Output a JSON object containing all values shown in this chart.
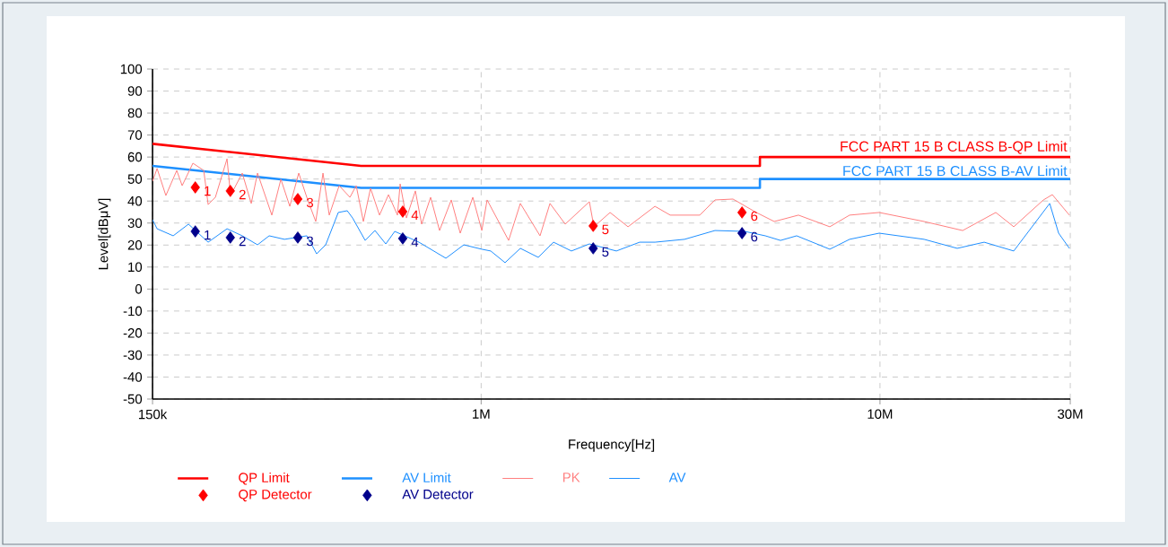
{
  "chart_data": {
    "type": "line",
    "xlabel": "Frequency[Hz]",
    "ylabel": "Level[dBμV]",
    "log": "x",
    "grid": true,
    "legend": "bottom",
    "xlim": [
      150000,
      30000000
    ],
    "ylim": [
      -50,
      100
    ],
    "xticks": [
      {
        "value": 150000,
        "label": "150k"
      },
      {
        "value": 1000000,
        "label": "1M"
      },
      {
        "value": 10000000,
        "label": "10M"
      },
      {
        "value": 30000000,
        "label": "30M"
      }
    ],
    "yticks": [
      -50,
      -40,
      -30,
      -20,
      -10,
      0,
      10,
      20,
      30,
      40,
      50,
      60,
      70,
      80,
      90,
      100
    ],
    "annotations": [
      {
        "text": "FCC PART 15 B CLASS B-QP Limit",
        "x": 30000000,
        "y": 60
      },
      {
        "text": "FCC PART 15 B CLASS B-AV Limit",
        "x": 30000000,
        "y": 50
      },
      {
        "text": "1",
        "x": 192000,
        "y": 46.2
      },
      {
        "text": "2",
        "x": 235000,
        "y": 44.6
      },
      {
        "text": "3",
        "x": 347000,
        "y": 40.9
      },
      {
        "text": "4",
        "x": 636000,
        "y": 35.2
      },
      {
        "text": "5",
        "x": 1910000,
        "y": 28.7
      },
      {
        "text": "6",
        "x": 4510000,
        "y": 34.8
      },
      {
        "text": "1",
        "x": 192000,
        "y": 26.2
      },
      {
        "text": "2",
        "x": 235000,
        "y": 23.4
      },
      {
        "text": "3",
        "x": 347000,
        "y": 23.4
      },
      {
        "text": "4",
        "x": 636000,
        "y": 23.0
      },
      {
        "text": "5",
        "x": 1910000,
        "y": 18.5
      },
      {
        "text": "6",
        "x": 4510000,
        "y": 25.4
      }
    ],
    "series": [
      {
        "name": "QP Limit",
        "color": "#ff0000",
        "marker": "none",
        "x": [
          150000,
          500000,
          5000000,
          5000000,
          30000000
        ],
        "values": [
          66,
          56,
          56,
          60,
          60
        ]
      },
      {
        "name": "AV Limit",
        "color": "#1e90ff",
        "marker": "none",
        "x": [
          150000,
          500000,
          5000000,
          5000000,
          30000000
        ],
        "values": [
          56,
          46,
          46,
          50,
          50
        ]
      },
      {
        "name": "PK",
        "color": "#ff8080",
        "marker": "none",
        "x": [
          150000,
          154000,
          162000,
          172500,
          178000,
          189400,
          201600,
          206800,
          215600,
          230600,
          235400,
          251800,
          265200,
          275000,
          298700,
          314700,
          331300,
          348900,
          367400,
          385000,
          401300,
          416100,
          440600,
          468800,
          486100,
          506700,
          528100,
          556200,
          585800,
          616900,
          626500,
          649700,
          684100,
          709500,
          747100,
          786800,
          841600,
          886300,
          953000,
          1004000,
          1035000,
          1172000,
          1254000,
          1405000,
          1488000,
          1625000,
          1868000,
          1918000,
          2105000,
          2335000,
          2728000,
          2979000,
          3534000,
          3858000,
          4280000,
          4897000,
          5431000,
          6247000,
          7486000,
          8391000,
          9954000,
          12900000,
          16120000,
          19520000,
          21650000,
          25690000,
          27050000,
          29850000
        ],
        "values": [
          49,
          54.8,
          42.5,
          53.9,
          47,
          57.2,
          53.9,
          38.4,
          41.7,
          59.2,
          42.5,
          52.7,
          38.9,
          52.7,
          33.6,
          49.9,
          37.6,
          52.7,
          40.5,
          30.7,
          52.7,
          33.6,
          47,
          41.7,
          47,
          30.7,
          45.8,
          33.6,
          42.9,
          33.6,
          47.8,
          32.3,
          44.6,
          29.5,
          41.7,
          26.6,
          40.5,
          25.4,
          41.7,
          26.6,
          40.5,
          22.1,
          38.9,
          24.2,
          38.9,
          29.5,
          39.7,
          28.3,
          34.8,
          28.3,
          37.6,
          33.6,
          33.6,
          40.5,
          40.9,
          34.8,
          30.7,
          33.6,
          28.3,
          33.6,
          34.8,
          30.7,
          26.6,
          34.8,
          28.3,
          40.5,
          42.9,
          33.6
        ]
      },
      {
        "name": "AV",
        "color": "#1e8fff",
        "marker": "none",
        "x": [
          150000,
          154000,
          169000,
          184600,
          206800,
          230600,
          251800,
          275000,
          294100,
          321300,
          365600,
          387000,
          407600,
          438300,
          461600,
          476100,
          512000,
          541900,
          576700,
          607300,
          698400,
          815800,
          904800,
          1004000,
          1057000,
          1148000,
          1254000,
          1391000,
          1519000,
          1684000,
          1868000,
          2183000,
          2497000,
          2728000,
          3236000,
          3858000,
          4578000,
          5157000,
          5631000,
          6183000,
          7486000,
          8391000,
          9954000,
          12900000,
          15620000,
          18250000,
          21650000,
          26640000,
          28050000,
          29850000
        ],
        "values": [
          31.5,
          27.4,
          24.2,
          29.5,
          21.3,
          27.4,
          24.2,
          20.1,
          24.2,
          22.6,
          24.2,
          16,
          20.1,
          34.8,
          35.6,
          32.3,
          22.1,
          26.6,
          20.5,
          26.2,
          21.3,
          14,
          20.1,
          18.1,
          17.3,
          12,
          18.5,
          14.4,
          21.3,
          17.3,
          20.5,
          17.3,
          21.3,
          21.3,
          22.6,
          26.6,
          26.2,
          24.2,
          22.1,
          24.2,
          18.1,
          22.6,
          25.4,
          22.6,
          18.5,
          21.3,
          17.3,
          38.9,
          25.4,
          18.5
        ]
      },
      {
        "name": "QP Detector",
        "type": "scatter",
        "color": "#ff0000",
        "marker": "diamond",
        "x": [
          192000,
          235000,
          347000,
          636000,
          1910000,
          4510000
        ],
        "values": [
          46.2,
          44.6,
          40.9,
          35.2,
          28.7,
          34.8
        ]
      },
      {
        "name": "AV Detector",
        "type": "scatter",
        "color": "#00008b",
        "marker": "diamond",
        "x": [
          192000,
          235000,
          347000,
          636000,
          1910000,
          4510000
        ],
        "values": [
          26.2,
          23.4,
          23.4,
          23.0,
          18.5,
          25.4
        ]
      }
    ]
  }
}
